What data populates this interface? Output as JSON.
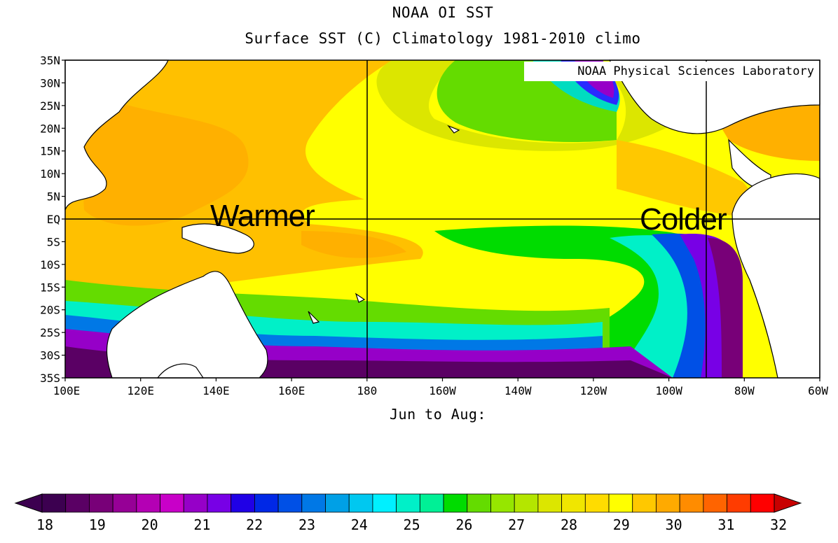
{
  "title": "NOAA OI SST",
  "subtitle": "Surface SST (C) Climatology 1981-2010 climo",
  "credit": "NOAA Physical Sciences Laboratory",
  "period_label": "Jun to Aug:",
  "annotations": {
    "warm": "Warmer",
    "cold": "Colder"
  },
  "lat_labels": [
    "35N",
    "30N",
    "25N",
    "20N",
    "15N",
    "10N",
    "5N",
    "EQ",
    "5S",
    "10S",
    "15S",
    "20S",
    "25S",
    "30S",
    "35S"
  ],
  "lon_labels": [
    "100E",
    "120E",
    "140E",
    "160E",
    "180",
    "160W",
    "140W",
    "120W",
    "100W",
    "80W",
    "60W"
  ],
  "colorbar": {
    "labels": [
      "18",
      "19",
      "20",
      "21",
      "22",
      "23",
      "24",
      "25",
      "26",
      "27",
      "28",
      "29",
      "30",
      "31",
      "32"
    ],
    "low_cap_color": "#3c0050",
    "high_cap_color": "#c80000",
    "colors": [
      "#3c0050",
      "#5a0064",
      "#780078",
      "#960096",
      "#b400b4",
      "#c800c8",
      "#9600c8",
      "#7800e6",
      "#2000e6",
      "#0028e6",
      "#0050e6",
      "#0078e6",
      "#00a0e6",
      "#00c8f0",
      "#00f0ff",
      "#00f0c8",
      "#00f096",
      "#00dc00",
      "#64dc00",
      "#96e600",
      "#b4e600",
      "#dce600",
      "#f0e600",
      "#ffdc00",
      "#ffff00",
      "#ffc800",
      "#ffaa00",
      "#ff8c00",
      "#ff6400",
      "#ff3c00",
      "#ff0000"
    ]
  },
  "map_colors": {
    "land": "#ffffff",
    "coast": "#000000",
    "grid": "#000000"
  }
}
